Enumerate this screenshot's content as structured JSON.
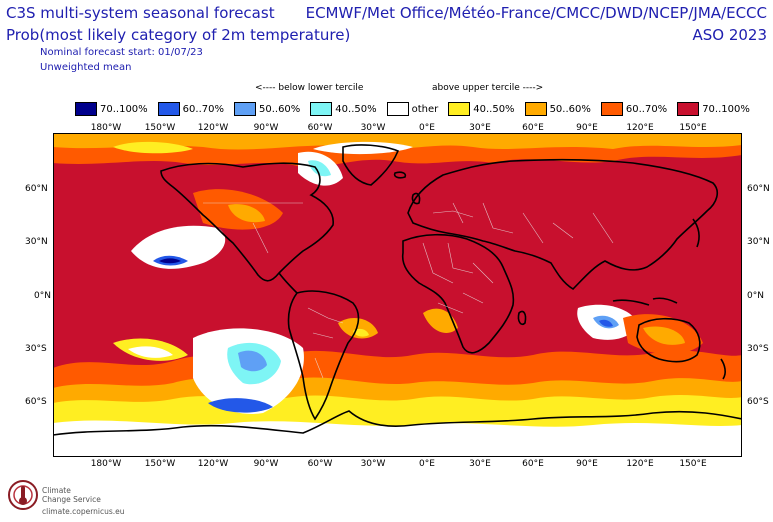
{
  "header": {
    "title": "C3S multi-system seasonal forecast",
    "subtitle": "Prob(most likely category of 2m temperature)",
    "start": "Nominal forecast start: 01/07/23",
    "mean": "Unweighted mean",
    "centres": "ECMWF/Met Office/Météo-France/CMCC/DWD/NCEP/JMA/ECCC",
    "period": "ASO 2023"
  },
  "tercile": {
    "below": "<---- below lower tercile",
    "above": "above upper tercile ---->"
  },
  "legend": [
    {
      "label": "70..100%",
      "color": "#00008c"
    },
    {
      "label": "60..70%",
      "color": "#2358e8"
    },
    {
      "label": "50..60%",
      "color": "#5fa0f5"
    },
    {
      "label": "40..50%",
      "color": "#7ef5f5"
    },
    {
      "label": "other",
      "color": "#ffffff"
    },
    {
      "label": "40..50%",
      "color": "#ffee22"
    },
    {
      "label": "50..60%",
      "color": "#ffaa00"
    },
    {
      "label": "60..70%",
      "color": "#ff5a00"
    },
    {
      "label": "70..100%",
      "color": "#c8102e"
    }
  ],
  "lon_labels": [
    "180°W",
    "150°W",
    "120°W",
    "90°W",
    "60°W",
    "30°W",
    "0°E",
    "30°E",
    "60°E",
    "90°E",
    "120°E",
    "150°E"
  ],
  "lat_labels": [
    "60°N",
    "30°N",
    "0°N",
    "30°S",
    "60°S"
  ],
  "footer": {
    "org1": "Climate",
    "org2": "Change Service",
    "url": "climate.copernicus.eu"
  }
}
